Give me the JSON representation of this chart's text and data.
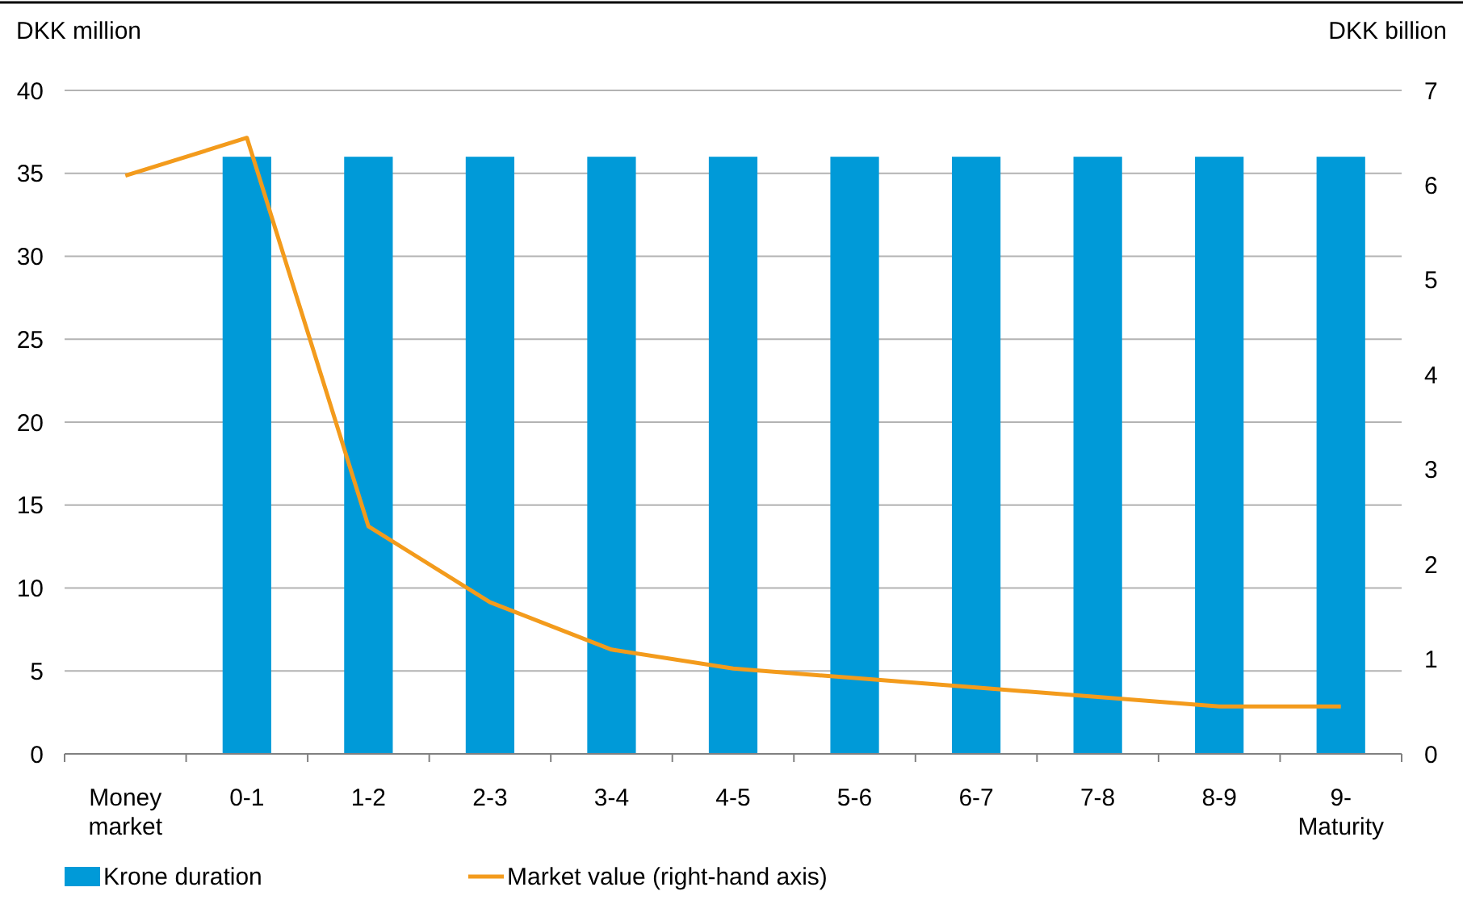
{
  "chart_data": {
    "type": "bar",
    "ylabel": "DKK million",
    "y2label": "DKK billion",
    "categories": [
      "Money market",
      "0-1",
      "1-2",
      "2-3",
      "3-4",
      "4-5",
      "5-6",
      "6-7",
      "7-8",
      "8-9",
      "9-Maturity"
    ],
    "series": [
      {
        "name": "Krone duration",
        "color": "#009ad8",
        "values": [
          null,
          36,
          36,
          36,
          36,
          36,
          36,
          36,
          36,
          36,
          36
        ]
      },
      {
        "name": "Market value (right-hand axis)",
        "type": "line",
        "axis": "y2",
        "color": "#f39b1c",
        "values": [
          6.1,
          6.5,
          2.4,
          1.6,
          1.1,
          0.9,
          0.8,
          0.7,
          0.6,
          0.5,
          0.5
        ]
      }
    ],
    "ylim": [
      0,
      40
    ],
    "yticks": [
      0,
      5,
      10,
      15,
      20,
      25,
      30,
      35,
      40
    ],
    "y2lim": [
      0,
      7
    ],
    "y2ticks": [
      0,
      1,
      2,
      3,
      4,
      5,
      6,
      7
    ],
    "grid": "y",
    "legend": "bottom left",
    "marker": "none",
    "line_style": "solid"
  }
}
